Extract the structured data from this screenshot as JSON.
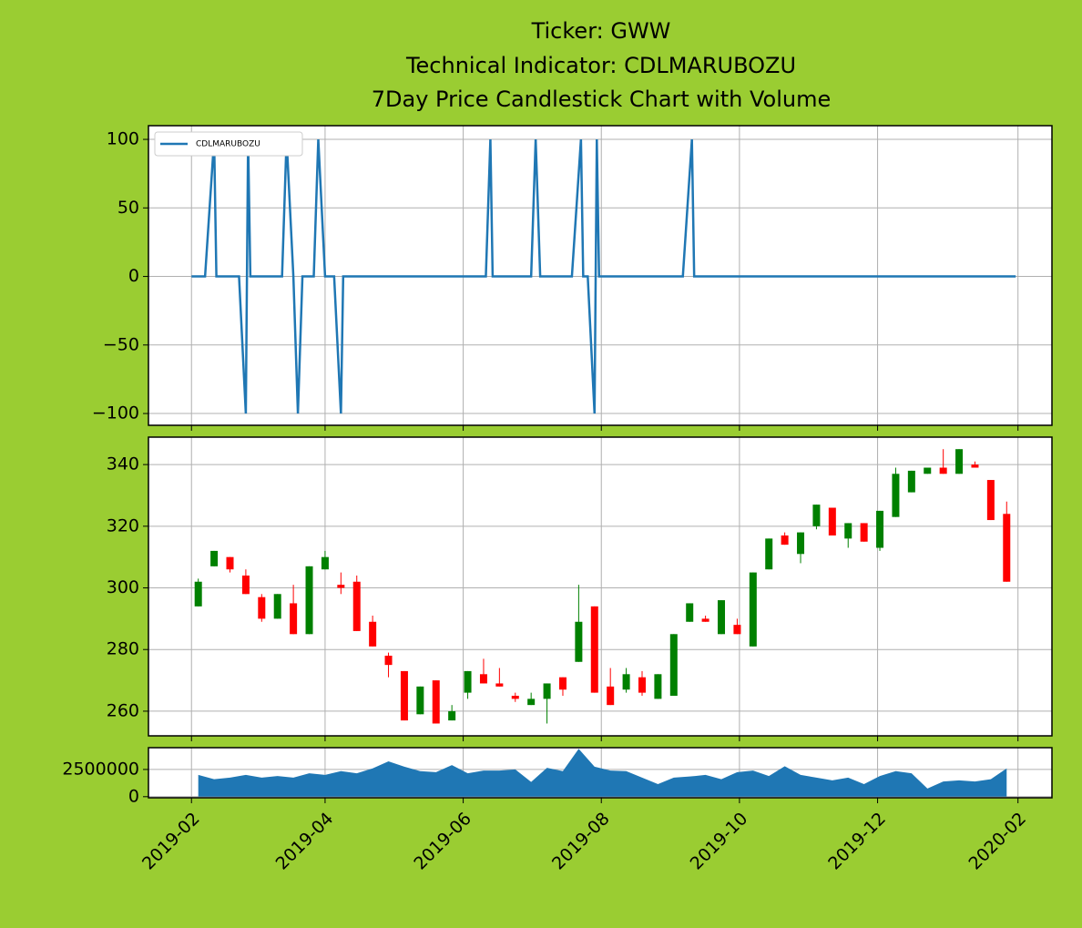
{
  "chart_data": [
    {
      "type": "line",
      "title": [
        "Ticker: GWW",
        "Technical Indicator: CDLMARUBOZU",
        "7Day Price Candlestick Chart with Volume"
      ],
      "x": [
        "2019-02-01",
        "2019-02-07",
        "2019-02-11",
        "2019-02-12",
        "2019-02-22",
        "2019-02-25",
        "2019-02-26",
        "2019-02-27",
        "2019-03-13",
        "2019-03-15",
        "2019-03-18",
        "2019-03-20",
        "2019-03-22",
        "2019-03-27",
        "2019-03-29",
        "2019-04-01",
        "2019-04-05",
        "2019-04-08",
        "2019-04-09",
        "2019-06-11",
        "2019-06-13",
        "2019-06-14",
        "2019-07-01",
        "2019-07-03",
        "2019-07-05",
        "2019-07-19",
        "2019-07-23",
        "2019-07-24",
        "2019-07-26",
        "2019-07-29",
        "2019-07-30",
        "2019-07-31",
        "2019-09-06",
        "2019-09-10",
        "2019-09-11",
        "2020-01-31"
      ],
      "series": [
        {
          "name": "CDLMARUBOZU",
          "color": "#1f77b4",
          "values": [
            0,
            0,
            100,
            0,
            0,
            -100,
            100,
            0,
            0,
            100,
            0,
            -100,
            0,
            0,
            100,
            0,
            0,
            -100,
            0,
            0,
            100,
            0,
            0,
            100,
            0,
            0,
            100,
            0,
            0,
            -100,
            100,
            0,
            0,
            100,
            0,
            0
          ]
        }
      ],
      "ylim": [
        -108.6,
        110
      ],
      "yticks": [
        100,
        50,
        0,
        {
          "value": -50,
          "label": "−50"
        },
        {
          "value": -100,
          "label": "−100"
        }
      ],
      "grid": true,
      "legend": "upper left"
    },
    {
      "type": "candlestick",
      "x": [
        "2019-02-04",
        "2019-02-11",
        "2019-02-18",
        "2019-02-25",
        "2019-03-04",
        "2019-03-11",
        "2019-03-18",
        "2019-03-25",
        "2019-04-01",
        "2019-04-08",
        "2019-04-15",
        "2019-04-22",
        "2019-04-29",
        "2019-05-06",
        "2019-05-13",
        "2019-05-20",
        "2019-05-27",
        "2019-06-03",
        "2019-06-10",
        "2019-06-17",
        "2019-06-24",
        "2019-07-01",
        "2019-07-08",
        "2019-07-15",
        "2019-07-22",
        "2019-07-29",
        "2019-08-05",
        "2019-08-12",
        "2019-08-19",
        "2019-08-26",
        "2019-09-02",
        "2019-09-09",
        "2019-09-16",
        "2019-09-23",
        "2019-09-30",
        "2019-10-07",
        "2019-10-14",
        "2019-10-21",
        "2019-10-28",
        "2019-11-04",
        "2019-11-11",
        "2019-11-18",
        "2019-11-25",
        "2019-12-02",
        "2019-12-09",
        "2019-12-16",
        "2019-12-23",
        "2019-12-30",
        "2020-01-06",
        "2020-01-13",
        "2020-01-20",
        "2020-01-27"
      ],
      "open": [
        294,
        307,
        310,
        304,
        297,
        290,
        295,
        285,
        306,
        301,
        302,
        289,
        278,
        273,
        259,
        270,
        257,
        266,
        272,
        269,
        265,
        262,
        264,
        271,
        276,
        294,
        268,
        267,
        271,
        264,
        265,
        289,
        290,
        285,
        288,
        281,
        306,
        317,
        311,
        320,
        326,
        316,
        321,
        313,
        323,
        331,
        337,
        339,
        337,
        340,
        335,
        324
      ],
      "high": [
        303,
        312,
        310,
        306,
        298,
        298,
        301,
        307,
        312,
        305,
        304,
        291,
        279,
        273,
        268,
        270,
        262,
        273,
        277,
        274,
        266,
        266,
        269,
        271,
        301,
        294,
        274,
        274,
        273,
        272,
        285,
        295,
        291,
        296,
        290,
        305,
        316,
        318,
        318,
        327,
        326,
        321,
        321,
        325,
        339,
        338,
        339,
        345,
        345,
        341,
        335,
        328
      ],
      "low": [
        294,
        307,
        305,
        298,
        289,
        290,
        285,
        285,
        306,
        298,
        286,
        281,
        271,
        257,
        259,
        256,
        257,
        264,
        269,
        268,
        263,
        262,
        256,
        265,
        276,
        266,
        262,
        266,
        265,
        264,
        265,
        289,
        289,
        285,
        285,
        281,
        306,
        314,
        308,
        319,
        317,
        313,
        315,
        312,
        323,
        331,
        337,
        337,
        337,
        339,
        322,
        302
      ],
      "close": [
        302,
        312,
        306,
        298,
        290,
        298,
        285,
        307,
        310,
        300,
        286,
        281,
        275,
        257,
        268,
        256,
        260,
        273,
        269,
        268,
        264,
        264,
        269,
        267,
        289,
        266,
        262,
        272,
        266,
        272,
        285,
        295,
        289,
        296,
        285,
        305,
        316,
        314,
        318,
        327,
        317,
        321,
        315,
        325,
        337,
        338,
        339,
        337,
        345,
        339,
        322,
        302
      ],
      "up_color": "green",
      "down_color": "red",
      "ylim": [
        252,
        348.9
      ],
      "yticks": [
        260,
        280,
        300,
        320,
        340
      ],
      "grid": true
    },
    {
      "type": "area",
      "x": [
        "2019-02-04",
        "2019-02-11",
        "2019-02-18",
        "2019-02-25",
        "2019-03-04",
        "2019-03-11",
        "2019-03-18",
        "2019-03-25",
        "2019-04-01",
        "2019-04-08",
        "2019-04-15",
        "2019-04-22",
        "2019-04-29",
        "2019-05-06",
        "2019-05-13",
        "2019-05-20",
        "2019-05-27",
        "2019-06-03",
        "2019-06-10",
        "2019-06-17",
        "2019-06-24",
        "2019-07-01",
        "2019-07-08",
        "2019-07-15",
        "2019-07-22",
        "2019-07-29",
        "2019-08-05",
        "2019-08-12",
        "2019-08-19",
        "2019-08-26",
        "2019-09-02",
        "2019-09-09",
        "2019-09-16",
        "2019-09-23",
        "2019-09-30",
        "2019-10-07",
        "2019-10-14",
        "2019-10-21",
        "2019-10-28",
        "2019-11-04",
        "2019-11-11",
        "2019-11-18",
        "2019-11-25",
        "2019-12-02",
        "2019-12-09",
        "2019-12-16",
        "2019-12-23",
        "2019-12-30",
        "2020-01-06",
        "2020-01-13",
        "2020-01-20",
        "2020-01-27"
      ],
      "values": [
        2000000,
        1600000,
        1750000,
        2000000,
        1750000,
        1900000,
        1750000,
        2150000,
        2000000,
        2350000,
        2150000,
        2600000,
        3250000,
        2750000,
        2350000,
        2250000,
        2900000,
        2150000,
        2400000,
        2400000,
        2500000,
        1350000,
        2650000,
        2350000,
        4400000,
        2750000,
        2400000,
        2350000,
        1750000,
        1150000,
        1750000,
        1850000,
        2000000,
        1600000,
        2250000,
        2400000,
        1900000,
        2800000,
        2000000,
        1750000,
        1500000,
        1750000,
        1150000,
        1900000,
        2350000,
        2150000,
        750000,
        1400000,
        1500000,
        1400000,
        1600000,
        2600000
      ],
      "color": "#1f77b4",
      "ylim": [
        -100000,
        4500000
      ],
      "yticks": [
        0,
        2500000
      ],
      "grid": true,
      "xlim": [
        "2019-01-13",
        "2020-02-16"
      ],
      "xticks": [
        {
          "value": "2019-02-01",
          "label": "2019-02"
        },
        {
          "value": "2019-04-01",
          "label": "2019-04"
        },
        {
          "value": "2019-06-01",
          "label": "2019-06"
        },
        {
          "value": "2019-08-01",
          "label": "2019-08"
        },
        {
          "value": "2019-10-01",
          "label": "2019-10"
        },
        {
          "value": "2019-12-01",
          "label": "2019-12"
        },
        {
          "value": "2020-02-01",
          "label": "2020-02"
        }
      ]
    }
  ]
}
